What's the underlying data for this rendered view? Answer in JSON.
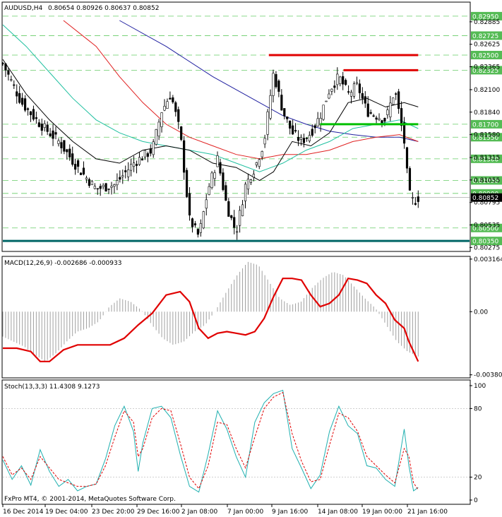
{
  "chart_data": {
    "type": "candlestick",
    "main": {
      "title": "AUDUSD,H4",
      "ohlc_readout": "0.80654 0.80926 0.80637 0.80852",
      "ylim": [
        0.80245,
        0.8299
      ],
      "tick_labels": [
        "0.82885",
        "0.82625",
        "0.82365",
        "0.82100",
        "0.81840",
        "0.81580",
        "0.81315",
        "0.81055",
        "0.80795",
        "0.80535",
        "0.80275"
      ],
      "level_labels": [
        "0.82950",
        "0.82725",
        "0.82500",
        "0.82325",
        "0.81700",
        "0.81550",
        "0.81300",
        "0.81050",
        "0.80900",
        "0.80500",
        "0.80350"
      ],
      "current_price_label": "0.80852",
      "current_price": 0.80852,
      "horizontal_lines": [
        {
          "y": 0.825,
          "x_start": 0.57,
          "x_end": 0.89,
          "color": "#e00000"
        },
        {
          "y": 0.82325,
          "x_start": 0.73,
          "x_end": 0.89,
          "color": "#e00000"
        },
        {
          "y": 0.817,
          "x_start": 0.68,
          "x_end": 0.89,
          "color": "#00c000"
        },
        {
          "y": 0.8035,
          "x_start": 0.0,
          "x_end": 1.0,
          "color": "#006666"
        }
      ],
      "close_path": [
        [
          0,
          0.824
        ],
        [
          0.04,
          0.8195
        ],
        [
          0.08,
          0.817
        ],
        [
          0.12,
          0.815
        ],
        [
          0.16,
          0.812
        ],
        [
          0.2,
          0.8095
        ],
        [
          0.24,
          0.81
        ],
        [
          0.28,
          0.8125
        ],
        [
          0.32,
          0.814
        ],
        [
          0.34,
          0.8185
        ],
        [
          0.36,
          0.8205
        ],
        [
          0.38,
          0.816
        ],
        [
          0.4,
          0.806
        ],
        [
          0.42,
          0.804
        ],
        [
          0.44,
          0.8095
        ],
        [
          0.46,
          0.813
        ],
        [
          0.48,
          0.8075
        ],
        [
          0.5,
          0.8045
        ],
        [
          0.52,
          0.81
        ],
        [
          0.54,
          0.812
        ],
        [
          0.56,
          0.815
        ],
        [
          0.58,
          0.823
        ],
        [
          0.6,
          0.8185
        ],
        [
          0.62,
          0.816
        ],
        [
          0.64,
          0.815
        ],
        [
          0.66,
          0.816
        ],
        [
          0.68,
          0.818
        ],
        [
          0.7,
          0.821
        ],
        [
          0.72,
          0.8225
        ],
        [
          0.74,
          0.8205
        ],
        [
          0.76,
          0.8215
        ],
        [
          0.78,
          0.8185
        ],
        [
          0.8,
          0.818
        ],
        [
          0.82,
          0.8175
        ],
        [
          0.84,
          0.821
        ],
        [
          0.86,
          0.815
        ],
        [
          0.87,
          0.809
        ],
        [
          0.88,
          0.808
        ],
        [
          0.89,
          0.8085
        ]
      ],
      "ma_black": [
        [
          0,
          0.8245
        ],
        [
          0.05,
          0.8205
        ],
        [
          0.1,
          0.8175
        ],
        [
          0.15,
          0.815
        ],
        [
          0.2,
          0.813
        ],
        [
          0.25,
          0.8125
        ],
        [
          0.3,
          0.814
        ],
        [
          0.35,
          0.8145
        ],
        [
          0.4,
          0.814
        ],
        [
          0.45,
          0.8125
        ],
        [
          0.5,
          0.812
        ],
        [
          0.55,
          0.8105
        ],
        [
          0.58,
          0.8115
        ],
        [
          0.62,
          0.815
        ],
        [
          0.66,
          0.8145
        ],
        [
          0.7,
          0.816
        ],
        [
          0.74,
          0.8195
        ],
        [
          0.78,
          0.82
        ],
        [
          0.82,
          0.819
        ],
        [
          0.86,
          0.8195
        ],
        [
          0.89,
          0.819
        ]
      ],
      "ma_cyan": [
        [
          0,
          0.8285
        ],
        [
          0.05,
          0.826
        ],
        [
          0.1,
          0.823
        ],
        [
          0.15,
          0.82
        ],
        [
          0.2,
          0.8175
        ],
        [
          0.25,
          0.816
        ],
        [
          0.3,
          0.815
        ],
        [
          0.35,
          0.8145
        ],
        [
          0.4,
          0.814
        ],
        [
          0.45,
          0.8135
        ],
        [
          0.5,
          0.8125
        ],
        [
          0.55,
          0.8115
        ],
        [
          0.6,
          0.8125
        ],
        [
          0.65,
          0.814
        ],
        [
          0.7,
          0.815
        ],
        [
          0.75,
          0.8165
        ],
        [
          0.8,
          0.817
        ],
        [
          0.85,
          0.8175
        ],
        [
          0.89,
          0.8165
        ]
      ],
      "ma_red": [
        [
          0.13,
          0.829
        ],
        [
          0.2,
          0.826
        ],
        [
          0.25,
          0.8225
        ],
        [
          0.3,
          0.8195
        ],
        [
          0.35,
          0.817
        ],
        [
          0.4,
          0.8155
        ],
        [
          0.45,
          0.8145
        ],
        [
          0.5,
          0.8135
        ],
        [
          0.55,
          0.813
        ],
        [
          0.6,
          0.8135
        ],
        [
          0.65,
          0.8135
        ],
        [
          0.7,
          0.814
        ],
        [
          0.75,
          0.815
        ],
        [
          0.8,
          0.8155
        ],
        [
          0.85,
          0.8158
        ],
        [
          0.89,
          0.815
        ]
      ],
      "ma_blue": [
        [
          0.25,
          0.829
        ],
        [
          0.35,
          0.826
        ],
        [
          0.45,
          0.8225
        ],
        [
          0.55,
          0.8195
        ],
        [
          0.6,
          0.818
        ],
        [
          0.65,
          0.817
        ],
        [
          0.7,
          0.8162
        ],
        [
          0.75,
          0.8158
        ],
        [
          0.8,
          0.8155
        ],
        [
          0.85,
          0.8155
        ],
        [
          0.89,
          0.815
        ]
      ]
    },
    "macd": {
      "title": "MACD(12,26,9) -0.002686 -0.000933",
      "tick_labels": [
        "0.003164",
        "0.00",
        "-0.003802"
      ],
      "ylim": [
        -0.0039,
        0.0032
      ],
      "signal_path": [
        [
          0,
          -0.0022
        ],
        [
          0.03,
          -0.0022
        ],
        [
          0.06,
          -0.0024
        ],
        [
          0.08,
          -0.003
        ],
        [
          0.1,
          -0.003
        ],
        [
          0.13,
          -0.0023
        ],
        [
          0.16,
          -0.002
        ],
        [
          0.2,
          -0.002
        ],
        [
          0.23,
          -0.002
        ],
        [
          0.26,
          -0.0016
        ],
        [
          0.29,
          -0.0008
        ],
        [
          0.32,
          -0.0001
        ],
        [
          0.35,
          0.001
        ],
        [
          0.38,
          0.0012
        ],
        [
          0.4,
          0.0006
        ],
        [
          0.42,
          -0.001
        ],
        [
          0.44,
          -0.0016
        ],
        [
          0.46,
          -0.0013
        ],
        [
          0.48,
          -0.0012
        ],
        [
          0.5,
          -0.0013
        ],
        [
          0.52,
          -0.0014
        ],
        [
          0.54,
          -0.0012
        ],
        [
          0.56,
          -0.0004
        ],
        [
          0.58,
          0.0009
        ],
        [
          0.6,
          0.002
        ],
        [
          0.62,
          0.002
        ],
        [
          0.64,
          0.0019
        ],
        [
          0.66,
          0.001
        ],
        [
          0.68,
          0.0003
        ],
        [
          0.7,
          0.0005
        ],
        [
          0.72,
          0.001
        ],
        [
          0.74,
          0.002
        ],
        [
          0.76,
          0.0019
        ],
        [
          0.78,
          0.0017
        ],
        [
          0.8,
          0.001
        ],
        [
          0.82,
          0.0005
        ],
        [
          0.84,
          -0.0005
        ],
        [
          0.86,
          -0.001
        ],
        [
          0.87,
          -0.0018
        ],
        [
          0.89,
          -0.003
        ]
      ],
      "histogram": [
        -0.0015,
        -0.0018,
        -0.0021,
        -0.0026,
        -0.003,
        -0.0025,
        -0.0018,
        -0.0012,
        -0.001,
        -0.0006,
        0.0003,
        0.0008,
        0.0006,
        0.0001,
        -0.0008,
        -0.0016,
        -0.002,
        -0.0018,
        -0.0012,
        -0.0008,
        0.0001,
        0.0012,
        0.0022,
        0.003,
        0.0028,
        0.0018,
        0.0008,
        0.0004,
        0.0006,
        0.0014,
        0.002,
        0.0024,
        0.0022,
        0.0015,
        0.0008,
        0.0002,
        -0.0008,
        -0.0018,
        -0.0024,
        -0.0027
      ]
    },
    "stoch": {
      "title": "Stoch(13,3,3) 11.4308 9.1273",
      "tick_labels": [
        "100",
        "80",
        "20",
        "0"
      ],
      "ylim": [
        0,
        100
      ],
      "main_path": [
        [
          0,
          35
        ],
        [
          0.02,
          18
        ],
        [
          0.04,
          30
        ],
        [
          0.06,
          13
        ],
        [
          0.08,
          44
        ],
        [
          0.1,
          25
        ],
        [
          0.12,
          12
        ],
        [
          0.14,
          18
        ],
        [
          0.16,
          8
        ],
        [
          0.18,
          12
        ],
        [
          0.2,
          14
        ],
        [
          0.22,
          36
        ],
        [
          0.24,
          65
        ],
        [
          0.26,
          82
        ],
        [
          0.28,
          60
        ],
        [
          0.29,
          25
        ],
        [
          0.3,
          50
        ],
        [
          0.32,
          80
        ],
        [
          0.34,
          82
        ],
        [
          0.36,
          72
        ],
        [
          0.38,
          40
        ],
        [
          0.4,
          12
        ],
        [
          0.42,
          7
        ],
        [
          0.44,
          40
        ],
        [
          0.46,
          78
        ],
        [
          0.48,
          62
        ],
        [
          0.5,
          38
        ],
        [
          0.52,
          20
        ],
        [
          0.54,
          68
        ],
        [
          0.56,
          85
        ],
        [
          0.58,
          93
        ],
        [
          0.6,
          96
        ],
        [
          0.62,
          45
        ],
        [
          0.64,
          28
        ],
        [
          0.66,
          10
        ],
        [
          0.68,
          22
        ],
        [
          0.7,
          60
        ],
        [
          0.72,
          82
        ],
        [
          0.74,
          65
        ],
        [
          0.76,
          58
        ],
        [
          0.78,
          30
        ],
        [
          0.8,
          28
        ],
        [
          0.82,
          18
        ],
        [
          0.84,
          12
        ],
        [
          0.86,
          62
        ],
        [
          0.87,
          30
        ],
        [
          0.88,
          8
        ],
        [
          0.89,
          11
        ]
      ],
      "signal_path": [
        [
          0,
          38
        ],
        [
          0.02,
          22
        ],
        [
          0.04,
          28
        ],
        [
          0.06,
          18
        ],
        [
          0.08,
          38
        ],
        [
          0.1,
          28
        ],
        [
          0.12,
          18
        ],
        [
          0.14,
          15
        ],
        [
          0.16,
          12
        ],
        [
          0.18,
          12
        ],
        [
          0.2,
          14
        ],
        [
          0.22,
          30
        ],
        [
          0.24,
          55
        ],
        [
          0.26,
          78
        ],
        [
          0.28,
          68
        ],
        [
          0.29,
          38
        ],
        [
          0.3,
          45
        ],
        [
          0.32,
          72
        ],
        [
          0.34,
          80
        ],
        [
          0.36,
          78
        ],
        [
          0.38,
          50
        ],
        [
          0.4,
          20
        ],
        [
          0.42,
          10
        ],
        [
          0.44,
          30
        ],
        [
          0.46,
          68
        ],
        [
          0.48,
          66
        ],
        [
          0.5,
          45
        ],
        [
          0.52,
          28
        ],
        [
          0.54,
          55
        ],
        [
          0.56,
          80
        ],
        [
          0.58,
          90
        ],
        [
          0.6,
          94
        ],
        [
          0.62,
          58
        ],
        [
          0.64,
          34
        ],
        [
          0.66,
          16
        ],
        [
          0.68,
          18
        ],
        [
          0.7,
          48
        ],
        [
          0.72,
          76
        ],
        [
          0.74,
          72
        ],
        [
          0.76,
          60
        ],
        [
          0.78,
          38
        ],
        [
          0.8,
          30
        ],
        [
          0.82,
          22
        ],
        [
          0.84,
          15
        ],
        [
          0.86,
          45
        ],
        [
          0.87,
          38
        ],
        [
          0.88,
          15
        ],
        [
          0.89,
          9
        ]
      ]
    },
    "x_tick_labels": [
      "16 Dec 2014",
      "19 Dec 04:00",
      "23 Dec 20:00",
      "29 Dec 16:00",
      "2 Jan 08:00",
      "7 Jan 00:00",
      "9 Jan 16:00",
      "14 Jan 08:00",
      "19 Jan 00:00",
      "21 Jan 16:00"
    ],
    "copyright": "FxPro MT4, © 2001-2014, MetaQuotes Software Corp."
  }
}
